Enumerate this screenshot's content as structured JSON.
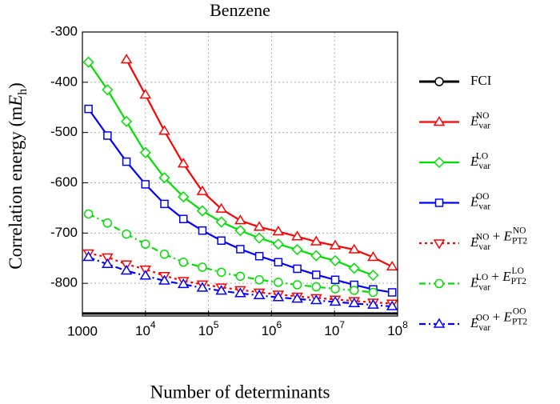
{
  "chart_data": {
    "type": "line",
    "title": "Benzene",
    "xlabel": "Number of determinants",
    "ylabel": "Correlation energy (mE_h)",
    "xscale": "log",
    "grid": true,
    "legend": "right",
    "x": [
      1250,
      2500,
      5000,
      10000,
      20000,
      40000,
      80000,
      160000,
      320000,
      640000,
      1280000,
      2560000,
      5120000,
      10240000,
      20480000,
      40960000,
      81920000
    ],
    "xlim": [
      1000,
      100000000
    ],
    "xticks": [
      1000,
      {
        "value": 10000,
        "label": "10^4"
      },
      {
        "value": 100000,
        "label": "10^5"
      },
      {
        "value": 1000000,
        "label": "10^6"
      },
      {
        "value": 10000000,
        "label": "10^7"
      },
      {
        "value": 100000000,
        "label": "10^8"
      }
    ],
    "ylim": [
      -865,
      -300
    ],
    "yticks": [
      -800,
      -700,
      -600,
      -500,
      -400,
      -300
    ],
    "reference": {
      "name": "FCI",
      "color": "#000000",
      "value": -860
    },
    "series": [
      {
        "name": "E_var^NO",
        "color": "#ff0000",
        "marker": "triangle-up",
        "dash": "solid",
        "values": [
          null,
          null,
          -355,
          -425,
          -497,
          -562,
          -617,
          -652,
          -675,
          -688,
          -697,
          -707,
          -717,
          -725,
          -733,
          -748,
          -767
        ]
      },
      {
        "name": "E_var^LO",
        "color": "#00e000",
        "marker": "diamond",
        "dash": "solid",
        "values": [
          -360,
          -415,
          -478,
          -540,
          -590,
          -628,
          -656,
          -678,
          -695,
          -710,
          -722,
          -733,
          -745,
          -755,
          -770,
          -784,
          null
        ]
      },
      {
        "name": "E_var^OO",
        "color": "#0000ff",
        "marker": "square",
        "dash": "solid",
        "values": [
          -453,
          -506,
          -558,
          -603,
          -642,
          -672,
          -695,
          -715,
          -732,
          -746,
          -758,
          -771,
          -783,
          -793,
          -803,
          -812,
          -818
        ]
      },
      {
        "name": "E_var^NO + E_PT2^NO",
        "color": "#ff0000",
        "marker": "triangle-down",
        "dash": "dotted",
        "values": [
          -740,
          -748,
          -762,
          -772,
          -785,
          -795,
          -802,
          -808,
          -813,
          -818,
          -822,
          -826,
          -829,
          -832,
          -835,
          -838,
          -840
        ]
      },
      {
        "name": "E_var^LO + E_PT2^LO",
        "color": "#00e000",
        "marker": "circle",
        "dash": "dashdot",
        "values": [
          -662,
          -680,
          -702,
          -722,
          -742,
          -758,
          -768,
          -778,
          -786,
          -793,
          -798,
          -803,
          -807,
          -811,
          -814,
          -818,
          null
        ]
      },
      {
        "name": "E_var^OO + E_PT2^OO",
        "color": "#0000ff",
        "marker": "triangle-up",
        "dash": "dashdot",
        "values": [
          -748,
          -762,
          -775,
          -785,
          -795,
          -802,
          -809,
          -815,
          -820,
          -824,
          -828,
          -831,
          -834,
          -837,
          -840,
          -843,
          -846
        ]
      }
    ]
  }
}
